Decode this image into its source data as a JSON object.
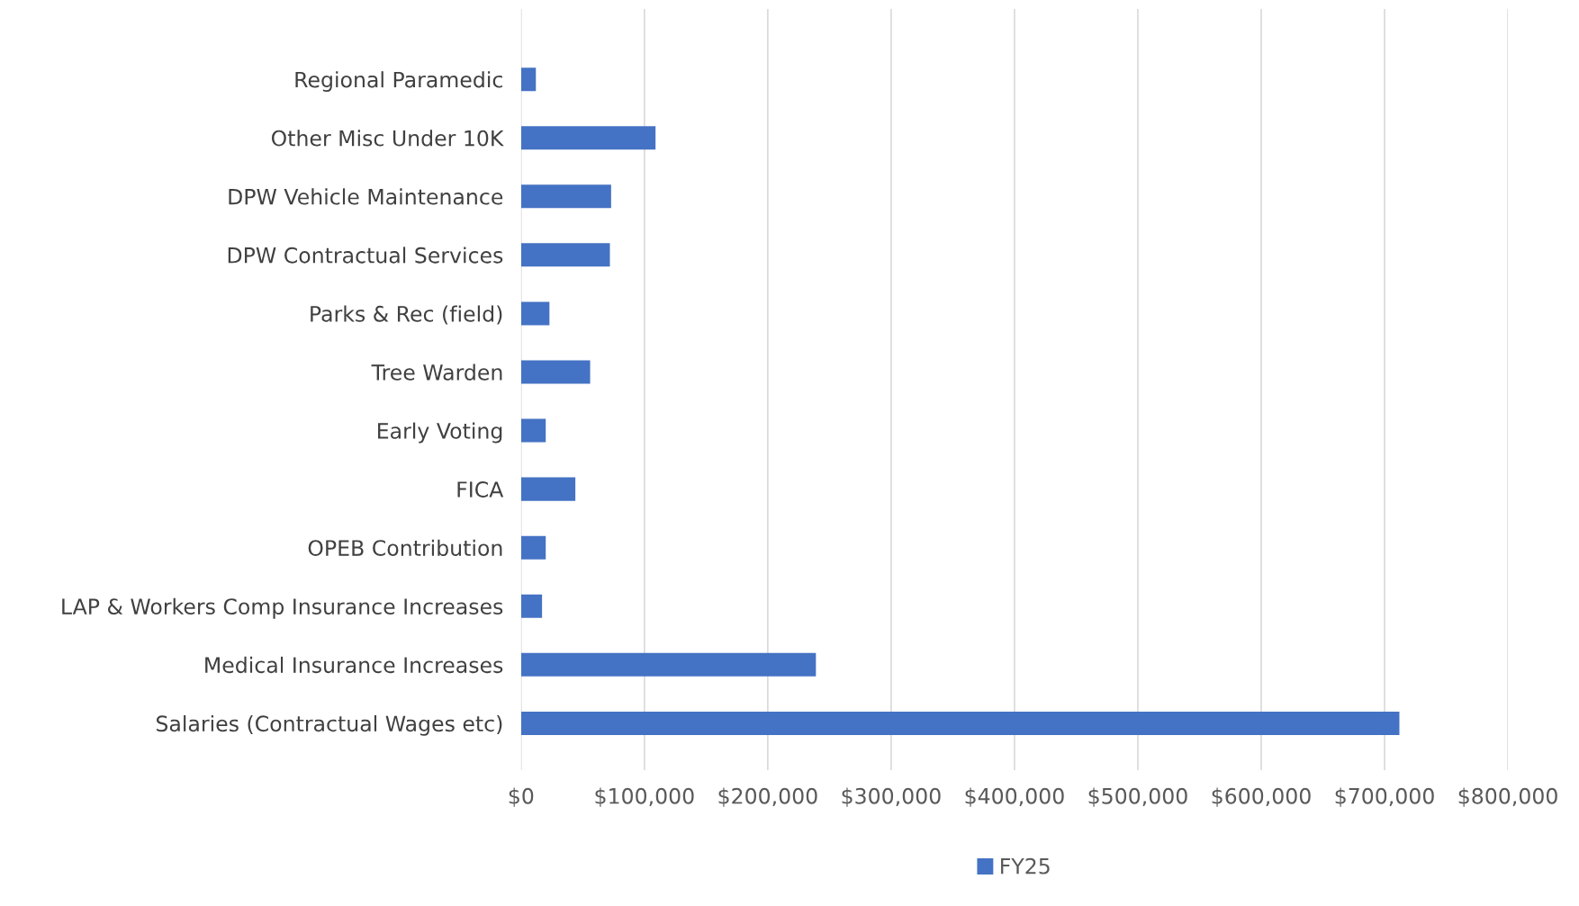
{
  "chart_data": {
    "type": "bar",
    "orientation": "horizontal",
    "categories": [
      "Regional Paramedic",
      "Other Misc Under 10K",
      "DPW Vehicle Maintenance",
      "DPW Contractual Services",
      "Parks & Rec (field)",
      "Tree Warden",
      "Early Voting",
      "FICA",
      "OPEB Contribution",
      "LAP & Workers Comp Insurance Increases",
      "Medical Insurance Increases",
      "Salaries (Contractual Wages etc)"
    ],
    "series": [
      {
        "name": "FY25",
        "color": "#4472c4",
        "values": [
          12000,
          109000,
          73000,
          72000,
          23000,
          56000,
          20000,
          44000,
          20000,
          17000,
          239000,
          712000
        ]
      }
    ],
    "xlim": [
      0,
      800000
    ],
    "xticks": [
      {
        "value": 0,
        "label": "$0"
      },
      {
        "value": 100000,
        "label": "$100,000"
      },
      {
        "value": 200000,
        "label": "$200,000"
      },
      {
        "value": 300000,
        "label": "$300,000"
      },
      {
        "value": 400000,
        "label": "$400,000"
      },
      {
        "value": 500000,
        "label": "$500,000"
      },
      {
        "value": 600000,
        "label": "$600,000"
      },
      {
        "value": 700000,
        "label": "$700,000"
      },
      {
        "value": 800000,
        "label": "$800,000"
      }
    ],
    "grid": "x",
    "legend": "bottom"
  }
}
